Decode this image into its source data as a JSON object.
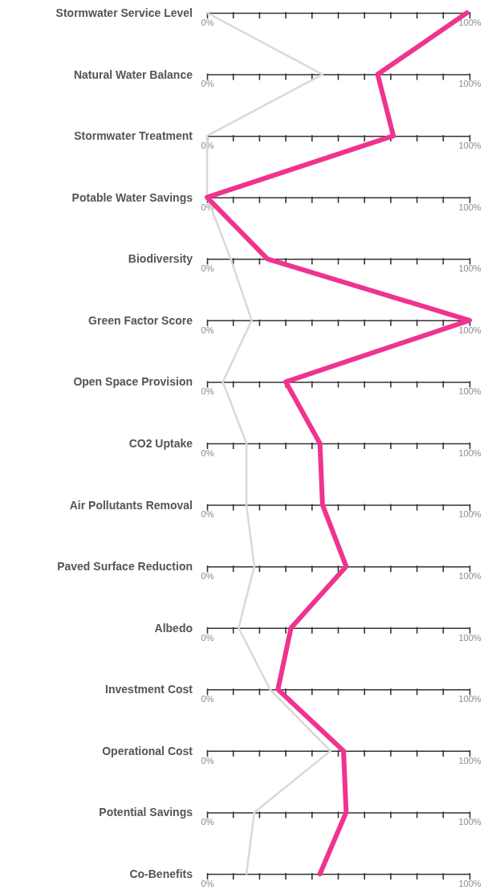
{
  "chart_data": {
    "type": "line",
    "orientation": "horizontal",
    "grid": "y",
    "categories": [
      "Stormwater Service Level",
      "Natural Water Balance",
      "Stormwater Treatment",
      "Potable Water Savings",
      "Biodiversity",
      "Green Factor Score",
      "Open Space Provision",
      "CO2 Uptake",
      "Air Pollutants Removal",
      "Paved Surface Reduction",
      "Albedo",
      "Investment Cost",
      "Operational Cost",
      "Potential Savings",
      "Co-Benefits"
    ],
    "xlim": [
      0,
      100
    ],
    "xticks": [
      {
        "value": 0,
        "label": "0%"
      },
      {
        "value": 100,
        "label": "100%"
      }
    ],
    "series": [
      {
        "color": "#d9d9d9",
        "values": [
          0,
          44,
          0,
          0,
          9,
          17,
          6,
          15,
          15,
          18,
          12,
          24,
          47,
          18,
          15
        ]
      },
      {
        "color": "#f0338f",
        "values": [
          99,
          65,
          71,
          0,
          23,
          100,
          30,
          43,
          44,
          53,
          32,
          27,
          52,
          53,
          43
        ]
      }
    ]
  }
}
